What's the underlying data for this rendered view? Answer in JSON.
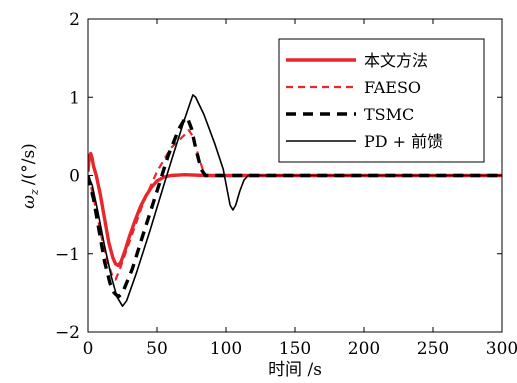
{
  "chart_data": {
    "type": "line",
    "title": "",
    "xlabel": "时间 /s",
    "ylabel": "ω_z /(°/s)",
    "ylabel_parts": {
      "symbol": "ω",
      "subscript": "z",
      "unit": "/(°/s)"
    },
    "xlim": [
      0,
      300
    ],
    "ylim": [
      -2,
      2
    ],
    "xticks": [
      0,
      50,
      100,
      150,
      200,
      250,
      300
    ],
    "yticks": [
      -2,
      -1,
      0,
      1,
      2
    ],
    "xtick_labels": [
      "0",
      "50",
      "100",
      "150",
      "200",
      "250",
      "300"
    ],
    "ytick_labels": [
      "−2",
      "−1",
      "0",
      "1",
      "2"
    ],
    "grid": false,
    "legend_position": "top-right",
    "series": [
      {
        "name": "本文方法",
        "color": "#e8262b",
        "style": "solid",
        "width": "thick",
        "points": [
          [
            0,
            0.05
          ],
          [
            1,
            0.25
          ],
          [
            2,
            0.28
          ],
          [
            3,
            0.22
          ],
          [
            4,
            0.12
          ],
          [
            6,
            0.0
          ],
          [
            9,
            -0.25
          ],
          [
            12,
            -0.55
          ],
          [
            15,
            -0.85
          ],
          [
            18,
            -1.05
          ],
          [
            20,
            -1.13
          ],
          [
            22,
            -1.15
          ],
          [
            24,
            -1.1
          ],
          [
            27,
            -0.95
          ],
          [
            30,
            -0.78
          ],
          [
            34,
            -0.58
          ],
          [
            38,
            -0.4
          ],
          [
            42,
            -0.26
          ],
          [
            46,
            -0.15
          ],
          [
            50,
            -0.07
          ],
          [
            55,
            -0.02
          ],
          [
            60,
            0.0
          ],
          [
            70,
            0.01
          ],
          [
            85,
            0.0
          ],
          [
            300,
            0.0
          ]
        ]
      },
      {
        "name": "FAESO",
        "color": "#e8262b",
        "style": "dashed",
        "width": "medium",
        "points": [
          [
            0,
            0.0
          ],
          [
            3,
            -0.2
          ],
          [
            6,
            -0.45
          ],
          [
            10,
            -0.8
          ],
          [
            14,
            -1.1
          ],
          [
            18,
            -1.3
          ],
          [
            20,
            -1.33
          ],
          [
            23,
            -1.2
          ],
          [
            30,
            -0.85
          ],
          [
            40,
            -0.35
          ],
          [
            50,
            0.05
          ],
          [
            60,
            0.35
          ],
          [
            70,
            0.52
          ],
          [
            73,
            0.58
          ],
          [
            76,
            0.5
          ],
          [
            80,
            0.25
          ],
          [
            84,
            0.03
          ],
          [
            86,
            0.0
          ],
          [
            300,
            0.0
          ]
        ]
      },
      {
        "name": "TSMC",
        "color": "#000000",
        "style": "dashed",
        "width": "thick",
        "points": [
          [
            0,
            0.0
          ],
          [
            4,
            -0.3
          ],
          [
            8,
            -0.7
          ],
          [
            12,
            -1.1
          ],
          [
            16,
            -1.38
          ],
          [
            19,
            -1.5
          ],
          [
            22,
            -1.55
          ],
          [
            25,
            -1.5
          ],
          [
            32,
            -1.2
          ],
          [
            40,
            -0.75
          ],
          [
            50,
            -0.2
          ],
          [
            58,
            0.25
          ],
          [
            66,
            0.6
          ],
          [
            70,
            0.72
          ],
          [
            72,
            0.74
          ],
          [
            75,
            0.6
          ],
          [
            78,
            0.35
          ],
          [
            82,
            0.08
          ],
          [
            85,
            0.0
          ],
          [
            300,
            0.0
          ]
        ]
      },
      {
        "name": "PD + 前馈",
        "color": "#000000",
        "style": "solid",
        "width": "thin",
        "points": [
          [
            0,
            0.0
          ],
          [
            3,
            -0.12
          ],
          [
            7,
            -0.45
          ],
          [
            12,
            -0.9
          ],
          [
            17,
            -1.3
          ],
          [
            21,
            -1.55
          ],
          [
            25,
            -1.67
          ],
          [
            28,
            -1.6
          ],
          [
            35,
            -1.25
          ],
          [
            45,
            -0.7
          ],
          [
            55,
            -0.12
          ],
          [
            62,
            0.28
          ],
          [
            70,
            0.72
          ],
          [
            76,
            1.03
          ],
          [
            78,
            1.0
          ],
          [
            84,
            0.78
          ],
          [
            92,
            0.4
          ],
          [
            98,
            0.08
          ],
          [
            101,
            -0.2
          ],
          [
            103,
            -0.38
          ],
          [
            105,
            -0.44
          ],
          [
            107,
            -0.38
          ],
          [
            110,
            -0.2
          ],
          [
            113,
            -0.06
          ],
          [
            116,
            0.0
          ],
          [
            300,
            0.0
          ]
        ]
      }
    ]
  }
}
